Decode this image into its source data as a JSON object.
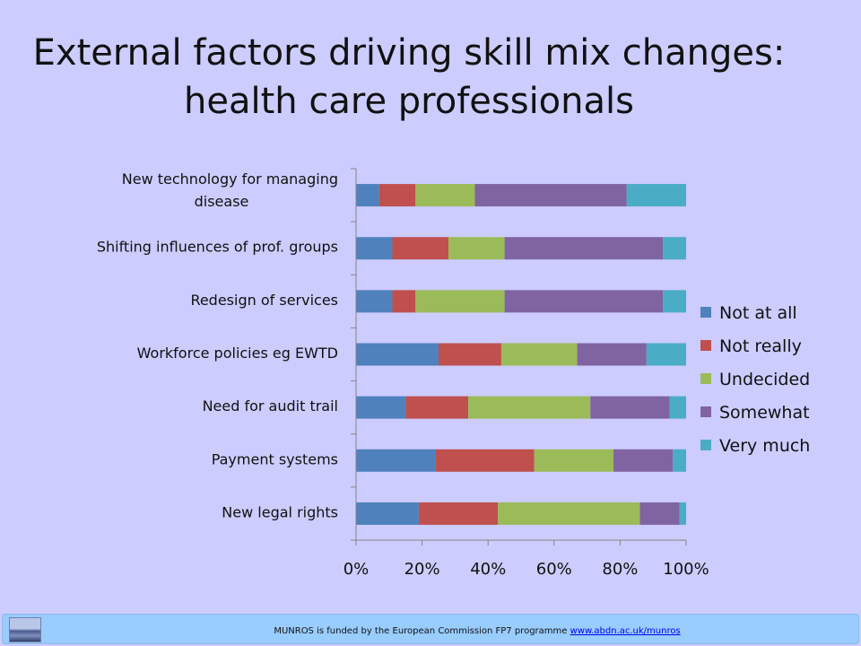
{
  "slide": {
    "title_line1": "External factors driving skill mix changes:",
    "title_line2": "health care professionals"
  },
  "footer": {
    "text": "MUNROS  is funded by the  European Commission  FP7 programme ",
    "link": "www.abdn.ac.uk/munros"
  },
  "chart_data": {
    "type": "bar",
    "orientation": "horizontal",
    "stacked": "percent",
    "categories": [
      "New technology for managing disease",
      "Shifting influences of prof. groups",
      "Redesign of services",
      "Workforce policies eg EWTD",
      "Need for audit trail",
      "Payment systems",
      "New legal rights"
    ],
    "category_lines": [
      [
        "New technology for managing",
        "disease"
      ],
      [
        "Shifting influences of prof. groups"
      ],
      [
        "Redesign of services"
      ],
      [
        "Workforce policies eg EWTD"
      ],
      [
        "Need for audit trail"
      ],
      [
        "Payment systems"
      ],
      [
        "New legal rights"
      ]
    ],
    "series": [
      {
        "name": "Not at all",
        "color": "#4f81bd",
        "values": [
          7,
          11,
          11,
          25,
          15,
          24,
          19
        ]
      },
      {
        "name": "Not really",
        "color": "#c0504d",
        "values": [
          11,
          17,
          7,
          19,
          19,
          30,
          24
        ]
      },
      {
        "name": "Undecided",
        "color": "#9bbb59",
        "values": [
          18,
          17,
          27,
          23,
          37,
          24,
          43
        ]
      },
      {
        "name": "Somewhat",
        "color": "#8064a2",
        "values": [
          46,
          48,
          48,
          21,
          24,
          18,
          12
        ]
      },
      {
        "name": "Very much",
        "color": "#4bacc6",
        "values": [
          18,
          7,
          7,
          12,
          5,
          4,
          2
        ]
      }
    ],
    "xlim": [
      0,
      100
    ],
    "x_ticks": [
      "0%",
      "20%",
      "40%",
      "60%",
      "80%",
      "100%"
    ],
    "grid": false,
    "legend_position": "right"
  }
}
